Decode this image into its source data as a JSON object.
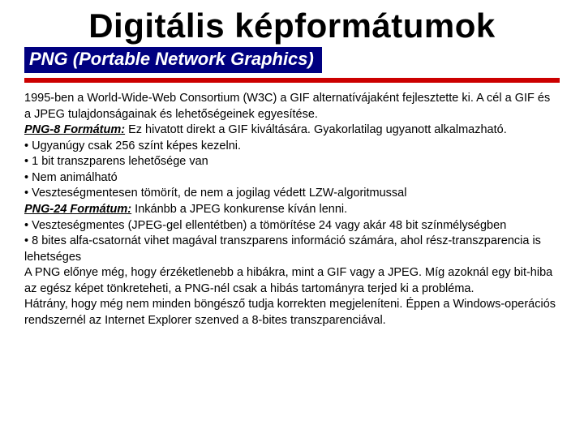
{
  "colors": {
    "background": "#ffffff",
    "title_text": "#000000",
    "subtitle_bg": "#000080",
    "subtitle_text": "#ffffff",
    "divider": "#cc0000",
    "body_text": "#000000"
  },
  "typography": {
    "title_fontsize": 42,
    "title_weight": "900",
    "title_family": "Arial",
    "subtitle_fontsize": 22,
    "subtitle_style": "italic bold",
    "body_fontsize": 14.5,
    "body_family": "Verdana"
  },
  "title": "Digitális képformátumok",
  "subtitle": "PNG (Portable Network Graphics)",
  "paragraphs": {
    "intro": "1995-ben a World-Wide-Web Consortium (W3C) a GIF alternatívájaként fejlesztette ki. A cél a GIF és a JPEG tulajdonságainak és lehetőségeinek egyesítése.",
    "png8_label": "PNG-8 Formátum:",
    "png8_text": " Ez hivatott direkt a GIF kiváltására. Gyakorlatilag ugyanott alkalmazható.",
    "png8_b1": "• Ugyanúgy csak 256 színt képes kezelni.",
    "png8_b2": "• 1 bit transzparens lehetősége van",
    "png8_b3": "• Nem animálható",
    "png8_b4": "• Veszteségmentesen tömörít, de nem a jogilag védett LZW-algoritmussal",
    "png24_label": "PNG-24 Formátum:",
    "png24_text": " Inkánbb a JPEG konkurense kíván lenni.",
    "png24_b1": "• Veszteségmentes (JPEG-gel ellentétben) a tömörítése 24 vagy akár 48 bit színmélységben",
    "png24_b2": "• 8 bites alfa-csatornát vihet magával transzparens információ számára, ahol rész-transzparencia is lehetséges",
    "adv": "A PNG előnye még, hogy érzéketlenebb a hibákra, mint a GIF vagy a JPEG. Míg azoknál egy bit-hiba az egész képet tönkreteheti, a PNG-nél csak a hibás tartományra terjed ki a probléma.",
    "dis": "Hátrány, hogy még nem minden böngésző tudja korrekten megjeleníteni. Éppen a Windows-operációs rendszernél az Internet Explorer szenved a 8-bites transzparenciával."
  }
}
